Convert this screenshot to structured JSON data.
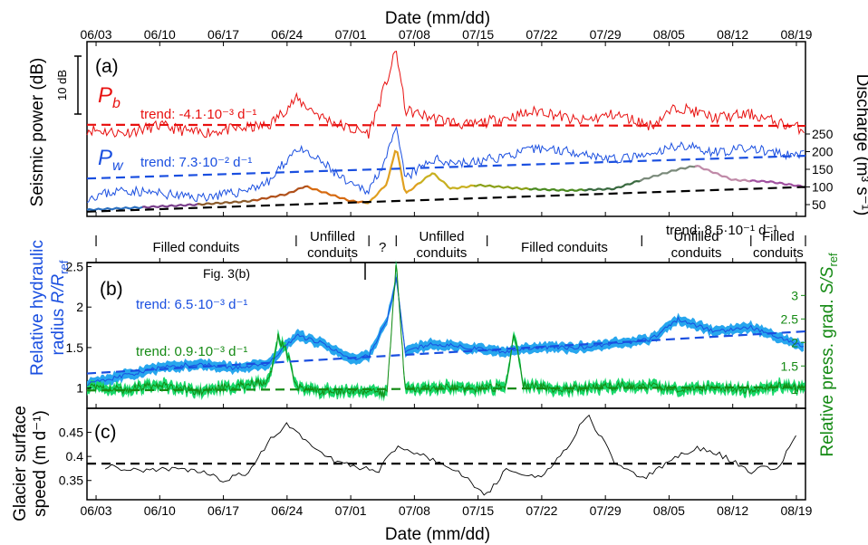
{
  "figure": {
    "top_axis_label": "Date (mm/dd)",
    "bottom_axis_label": "Date (mm/dd)",
    "date_ticks": [
      "06/03",
      "06/10",
      "06/17",
      "06/24",
      "07/01",
      "07/08",
      "07/15",
      "07/22",
      "07/29",
      "08/05",
      "08/12",
      "08/19"
    ],
    "colors": {
      "red": "#e8100f",
      "blue": "#1a4fe0",
      "light_blue": "#27a6ee",
      "green": "#158a14",
      "light_green": "#19d86a",
      "black": "#000000"
    }
  },
  "chart_data": [
    {
      "panel": "(a)",
      "type": "line",
      "ylabel": "Seismic power (dB)",
      "ylabel_right": "Discharge (m³ s⁻¹)",
      "scale_bar_label": "10 dB",
      "yticks_right": [
        50,
        100,
        150,
        200,
        250
      ],
      "series": [
        {
          "name": "P_b",
          "label_main": "P",
          "label_sub": "b",
          "color": "#e8100f",
          "x": [
            "06/02",
            "06/06",
            "06/10",
            "06/14",
            "06/18",
            "06/22",
            "06/25",
            "06/28",
            "07/01",
            "07/03",
            "07/05",
            "07/06",
            "07/07",
            "07/10",
            "07/14",
            "07/18",
            "07/22",
            "07/26",
            "07/30",
            "08/03",
            "08/06",
            "08/10",
            "08/14",
            "08/18",
            "08/20"
          ],
          "y": [
            93,
            92,
            94,
            92,
            93,
            94,
            101,
            96,
            93,
            92,
            106,
            114,
            98,
            96,
            94,
            96,
            98,
            95,
            97,
            94,
            99,
            96,
            97,
            94,
            93
          ]
        },
        {
          "name": "P_w",
          "label_main": "P",
          "label_sub": "w",
          "color": "#1a4fe0",
          "x": [
            "06/02",
            "06/06",
            "06/10",
            "06/14",
            "06/18",
            "06/22",
            "06/25",
            "06/28",
            "07/01",
            "07/03",
            "07/05",
            "07/06",
            "07/07",
            "07/10",
            "07/14",
            "07/18",
            "07/22",
            "07/26",
            "07/30",
            "08/03",
            "08/06",
            "08/10",
            "08/14",
            "08/18",
            "08/20"
          ],
          "y": [
            75,
            77,
            76,
            75,
            76,
            79,
            88,
            84,
            78,
            77,
            86,
            93,
            80,
            85,
            84,
            86,
            88,
            87,
            85,
            86,
            89,
            87,
            88,
            86,
            87
          ]
        },
        {
          "name": "Discharge",
          "color": "#c98e18",
          "x": [
            "06/02",
            "06/08",
            "06/14",
            "06/20",
            "06/24",
            "06/26",
            "06/28",
            "07/01",
            "07/03",
            "07/05",
            "07/06",
            "07/07",
            "07/10",
            "07/12",
            "07/15",
            "07/20",
            "07/25",
            "07/30",
            "08/02",
            "08/06",
            "08/08",
            "08/12",
            "08/16",
            "08/20"
          ],
          "y": [
            35,
            42,
            50,
            60,
            80,
            102,
            85,
            60,
            55,
            110,
            215,
            80,
            140,
            95,
            105,
            95,
            90,
            95,
            120,
            150,
            160,
            120,
            115,
            100
          ]
        }
      ],
      "trends": [
        {
          "label": "trend: -4.1·10⁻³ d⁻¹",
          "color": "#e8100f",
          "x": [
            "06/02",
            "08/20"
          ],
          "y": [
            94.2,
            93.9
          ]
        },
        {
          "label": "trend: 7.3·10⁻² d⁻¹",
          "color": "#1a4fe0",
          "x": [
            "06/02",
            "08/20"
          ],
          "y": [
            80,
            86
          ]
        },
        {
          "label": "trend: 8.5·10⁻¹ d⁻¹",
          "color": "#000000",
          "x": [
            "06/02",
            "08/20"
          ],
          "y": [
            30,
            100
          ]
        }
      ]
    },
    {
      "panel": "(b)",
      "type": "area",
      "ylabel_line1": "Relative hydraulic",
      "ylabel_line2_prefix": "radius ",
      "ylabel_line2_math": "R/R",
      "ylabel_line2_sub": "ref",
      "ylabel_right_prefix": "Relative press. grad. ",
      "ylabel_right_math": "S/S",
      "ylabel_right_sub": "ref",
      "yticks_left": [
        1,
        1.5,
        2,
        2.5
      ],
      "yticks_right": [
        1,
        1.5,
        2,
        2.5,
        3
      ],
      "ylim_left": [
        0.75,
        2.55
      ],
      "ylim_right": [
        0.6,
        3.7
      ],
      "fig_ref_label": "Fig. 3(b)",
      "regimes": [
        "Filled conduits",
        "Unfilled conduits",
        "?",
        "Unfilled conduits",
        "Filled conduits",
        "Unfilled conduits",
        "Filled conduits"
      ],
      "regime_boundaries": [
        "06/03",
        "06/25",
        "07/03",
        "07/06",
        "07/16",
        "08/02",
        "08/14",
        "08/20"
      ],
      "series": [
        {
          "name": "R/R_ref",
          "color": "#1a4fe0",
          "band_color": "#27a6ee",
          "x": [
            "06/02",
            "06/06",
            "06/10",
            "06/14",
            "06/18",
            "06/22",
            "06/25",
            "06/28",
            "07/01",
            "07/03",
            "07/05",
            "07/06",
            "07/07",
            "07/10",
            "07/14",
            "07/18",
            "07/22",
            "07/26",
            "07/30",
            "08/03",
            "08/06",
            "08/10",
            "08/14",
            "08/18",
            "08/20"
          ],
          "y": [
            1.05,
            1.15,
            1.25,
            1.3,
            1.25,
            1.3,
            1.65,
            1.55,
            1.35,
            1.4,
            1.85,
            2.35,
            1.45,
            1.55,
            1.5,
            1.45,
            1.5,
            1.5,
            1.55,
            1.6,
            1.85,
            1.7,
            1.75,
            1.6,
            1.5
          ]
        },
        {
          "name": "S/S_ref",
          "color": "#158a14",
          "band_color": "#19d86a",
          "x": [
            "06/02",
            "06/06",
            "06/10",
            "06/14",
            "06/18",
            "06/22",
            "06/23",
            "06/24",
            "06/25",
            "06/28",
            "07/01",
            "07/05",
            "07/06",
            "07/07",
            "07/10",
            "07/14",
            "07/18",
            "07/19",
            "07/20",
            "07/24",
            "07/28",
            "08/02",
            "08/06",
            "08/10",
            "08/14",
            "08/18",
            "08/20"
          ],
          "y": [
            1.05,
            1.0,
            1.1,
            0.95,
            1.05,
            1.2,
            2.1,
            1.8,
            1.05,
            0.95,
            1.0,
            0.9,
            3.7,
            1.0,
            1.05,
            1.0,
            1.05,
            2.2,
            1.1,
            1.0,
            1.05,
            1.1,
            1.0,
            1.05,
            1.0,
            1.1,
            1.0
          ]
        }
      ],
      "trends": [
        {
          "label": "trend: 6.5·10⁻³ d⁻¹",
          "color": "#1a4fe0",
          "x": [
            "06/02",
            "08/20"
          ],
          "y": [
            1.18,
            1.7
          ]
        },
        {
          "label": "trend: 0.9·10⁻³ d⁻¹",
          "color": "#158a14",
          "x": [
            "06/02",
            "08/20"
          ],
          "y": [
            0.98,
            1.05
          ]
        }
      ]
    },
    {
      "panel": "(c)",
      "type": "line",
      "ylabel_line1": "Glacier surface",
      "ylabel_line2": "speed (m d⁻¹)",
      "yticks": [
        0.35,
        0.4,
        0.45
      ],
      "ylim": [
        0.31,
        0.5
      ],
      "series": [
        {
          "name": "speed",
          "color": "#000000",
          "x": [
            "06/04",
            "06/07",
            "06/10",
            "06/14",
            "06/17",
            "06/20",
            "06/22",
            "06/24",
            "06/26",
            "06/28",
            "07/01",
            "07/04",
            "07/06",
            "07/09",
            "07/12",
            "07/16",
            "07/18",
            "07/22",
            "07/25",
            "07/27",
            "07/30",
            "08/02",
            "08/05",
            "08/08",
            "08/11",
            "08/14",
            "08/17",
            "08/19"
          ],
          "y": [
            0.38,
            0.37,
            0.375,
            0.37,
            0.35,
            0.37,
            0.43,
            0.47,
            0.43,
            0.4,
            0.38,
            0.37,
            0.42,
            0.4,
            0.38,
            0.32,
            0.37,
            0.36,
            0.42,
            0.49,
            0.39,
            0.35,
            0.39,
            0.42,
            0.4,
            0.37,
            0.38,
            0.44
          ]
        }
      ],
      "trends": [
        {
          "label": "",
          "color": "#000000",
          "x": [
            "06/02",
            "08/20"
          ],
          "y": [
            0.385,
            0.385
          ]
        }
      ]
    }
  ]
}
